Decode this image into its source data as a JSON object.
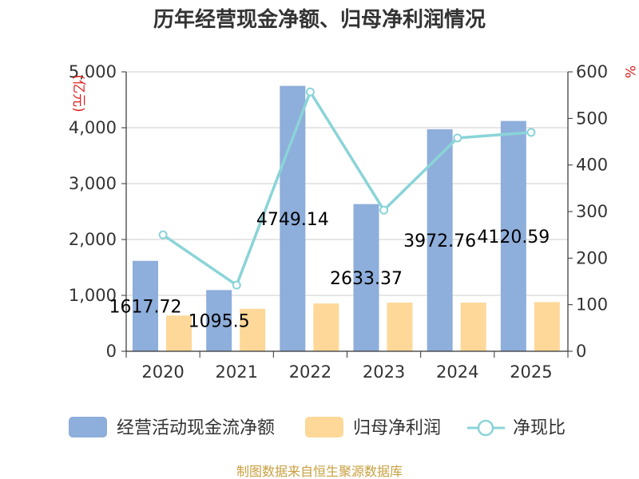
{
  "chart_data": {
    "type": "bar+line",
    "title": "历年经营现金净额、归母净利润情况",
    "categories": [
      "2020",
      "2021",
      "2022",
      "2023",
      "2024",
      "2025"
    ],
    "series": [
      {
        "name": "经营活动现金流净额",
        "type": "bar",
        "axis": "left",
        "color": "#8eaedb",
        "values": [
          1617.72,
          1095.5,
          4749.14,
          2633.37,
          3972.76,
          4120.59
        ],
        "labels": [
          "1617.72",
          "1095.5",
          "4749.14",
          "2633.37",
          "3972.76",
          "4120.59"
        ]
      },
      {
        "name": "归母净利润",
        "type": "bar",
        "axis": "left",
        "color": "#fdd898",
        "values": [
          640,
          760,
          855,
          870,
          870,
          880
        ]
      },
      {
        "name": "净现比",
        "type": "line",
        "axis": "right",
        "color": "#8ad4d8",
        "values": [
          250,
          142,
          557,
          303,
          458,
          470
        ]
      }
    ],
    "y_left": {
      "unit": "(亿元)",
      "min": 0,
      "max": 5000,
      "ticks": [
        "0",
        "1,000",
        "2,000",
        "3,000",
        "4,000",
        "5,000"
      ]
    },
    "y_right": {
      "unit": "%",
      "min": 0,
      "max": 600,
      "ticks": [
        "0",
        "100",
        "200",
        "300",
        "400",
        "500",
        "600"
      ]
    },
    "source": "制图数据来自恒生聚源数据库"
  }
}
